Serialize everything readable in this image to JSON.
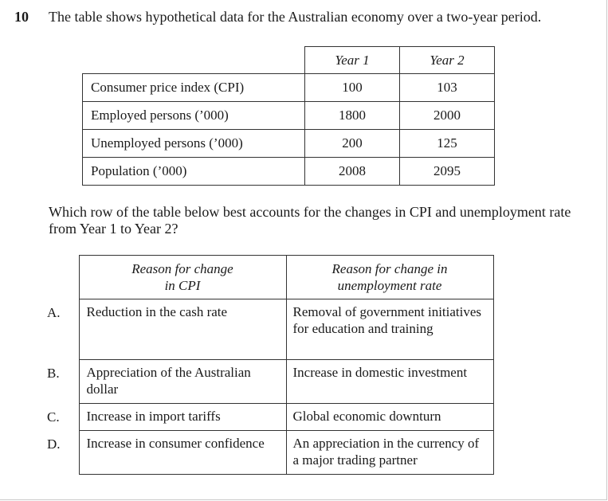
{
  "question": {
    "number": "10",
    "stem": "The table shows hypothetical data for the Australian economy over a two-year period."
  },
  "data_table": {
    "columns": [
      "Year 1",
      "Year 2"
    ],
    "rows": [
      {
        "label": "Consumer price index (CPI)",
        "year1": "100",
        "year2": "103"
      },
      {
        "label": "Employed persons (’000)",
        "year1": "1800",
        "year2": "2000"
      },
      {
        "label": "Unemployed persons (’000)",
        "year1": "200",
        "year2": "125"
      },
      {
        "label": "Population (’000)",
        "year1": "2008",
        "year2": "2095"
      }
    ]
  },
  "prompt": "Which row of the table below best accounts for the changes in CPI and unemployment rate from Year 1 to Year 2?",
  "answer_table": {
    "header_cpi": "Reason for change\nin CPI",
    "header_unemployment": "Reason for change in\nunemployment rate",
    "options": [
      {
        "letter": "A.",
        "cpi": "Reduction in the cash rate",
        "unemployment": "Removal of government initiatives for education and training"
      },
      {
        "letter": "B.",
        "cpi": "Appreciation of the Australian dollar",
        "unemployment": "Increase in domestic investment"
      },
      {
        "letter": "C.",
        "cpi": "Increase in import tariffs",
        "unemployment": "Global economic downturn"
      },
      {
        "letter": "D.",
        "cpi": "Increase in consumer confidence",
        "unemployment": "An appreciation in the currency of a major trading partner"
      }
    ]
  }
}
